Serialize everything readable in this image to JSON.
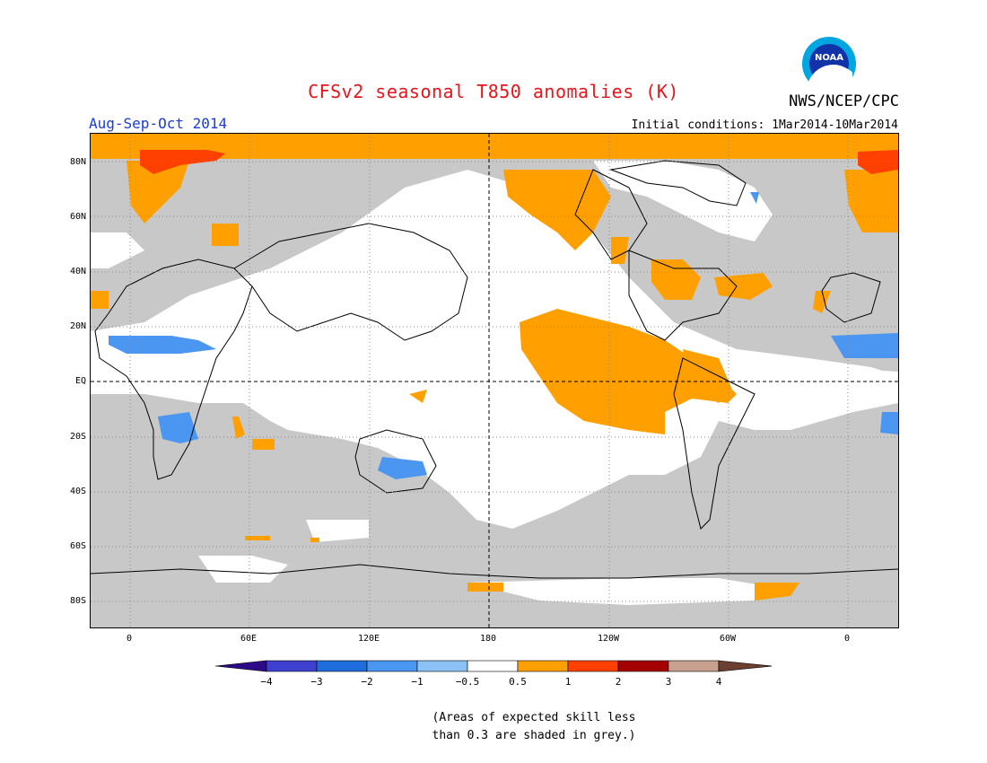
{
  "title": "CFSv2 seasonal T850 anomalies (K)",
  "agency": "NWS/NCEP/CPC",
  "season": "Aug-Sep-Oct 2014",
  "initial_conditions": "Initial conditions: 1Mar2014-10Mar2014",
  "logo_text": "NOAA",
  "lat_labels": [
    "80N",
    "60N",
    "40N",
    "20N",
    "EQ",
    "20S",
    "40S",
    "60S",
    "80S"
  ],
  "lon_labels": [
    "0",
    "60E",
    "120E",
    "180",
    "120W",
    "60W",
    "0"
  ],
  "colorbar": {
    "labels": [
      "−4",
      "−3",
      "−2",
      "−1",
      "−0.5",
      "0.5",
      "1",
      "2",
      "3",
      "4"
    ],
    "colors": [
      "#2c0a8a",
      "#3f3fd0",
      "#1f6ddc",
      "#4a96f0",
      "#8cc1f5",
      "#ffffff",
      "#ffa000",
      "#ff4000",
      "#a40000",
      "#c8a090",
      "#6b4030"
    ]
  },
  "legend_colors": {
    "low_skill_grey": "#c8c8c8",
    "warm_05_1": "#ffa000",
    "warm_1_2": "#ff4000",
    "cool_neg05_neg1": "#8cc1f5",
    "cool_neg1_neg2": "#4a96f0"
  },
  "note_line1": "(Areas of expected skill less",
  "note_line2": "than 0.3 are shaded in grey.)"
}
